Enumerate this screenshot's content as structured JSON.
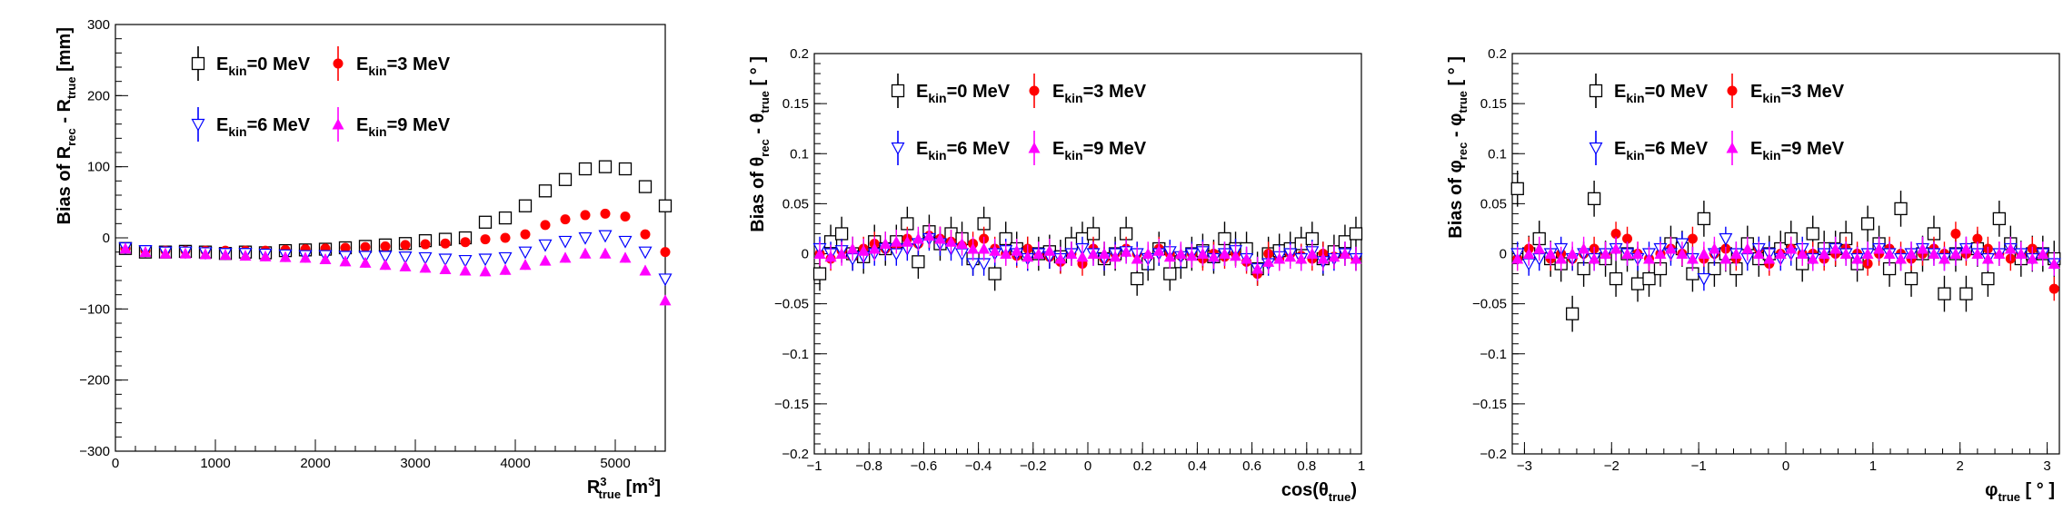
{
  "series_styles": [
    {
      "key": "e0",
      "marker": "open-square",
      "color": "#000000"
    },
    {
      "key": "e3",
      "marker": "filled-circle",
      "color": "#ff0000"
    },
    {
      "key": "e6",
      "marker": "open-triangle-down",
      "color": "#0000ff"
    },
    {
      "key": "e9",
      "marker": "filled-triangle-up",
      "color": "#ff00ff"
    }
  ],
  "chart_data": [
    {
      "type": "scatter",
      "xlabel": {
        "main": "R",
        "sup": "3",
        "sub": "true",
        "suffix": " [m",
        "suffix_sup": "3",
        "tail": "]"
      },
      "ylabel": {
        "prefix": "Bias of R",
        "sub1": "rec",
        "mid": " - R",
        "sub2": "true",
        "suffix": " [mm]"
      },
      "xlim": [
        0,
        5500
      ],
      "ylim": [
        -300,
        300
      ],
      "xticks": [
        0,
        1000,
        2000,
        3000,
        4000,
        5000
      ],
      "xtick_labels": [
        "0",
        "1000",
        "2000",
        "3000",
        "4000",
        "5000"
      ],
      "yticks": [
        -300,
        -200,
        -100,
        0,
        100,
        200,
        300
      ],
      "ytick_labels": [
        "−300",
        "−200",
        "−100",
        "0",
        "100",
        "200",
        "300"
      ],
      "legend": [
        {
          "series": "e0",
          "main": "E",
          "sub": "kin",
          "rest": "=0 MeV"
        },
        {
          "series": "e3",
          "main": "E",
          "sub": "kin",
          "rest": "=3 MeV"
        },
        {
          "series": "e6",
          "main": "E",
          "sub": "kin",
          "rest": "=6 MeV"
        },
        {
          "series": "e9",
          "main": "E",
          "sub": "kin",
          "rest": "=9 MeV"
        }
      ],
      "x": [
        100,
        300,
        500,
        700,
        900,
        1100,
        1300,
        1500,
        1700,
        1900,
        2100,
        2300,
        2500,
        2700,
        2900,
        3100,
        3300,
        3500,
        3700,
        3900,
        4100,
        4300,
        4500,
        4700,
        4900,
        5100,
        5300,
        5500
      ],
      "series": [
        {
          "key": "e0",
          "values": [
            -15,
            -20,
            -20,
            -19,
            -20,
            -22,
            -20,
            -21,
            -18,
            -17,
            -16,
            -14,
            -12,
            -10,
            -8,
            -4,
            -2,
            0,
            22,
            28,
            45,
            66,
            82,
            97,
            100,
            97,
            72,
            45
          ],
          "err": 0
        },
        {
          "key": "e3",
          "values": [
            -15,
            -18,
            -18,
            -18,
            -18,
            -18,
            -18,
            -18,
            -17,
            -16,
            -15,
            -14,
            -13,
            -12,
            -10,
            -9,
            -8,
            -6,
            -2,
            0,
            5,
            18,
            26,
            32,
            34,
            30,
            5,
            -20
          ],
          "err": 5
        },
        {
          "key": "e6",
          "values": [
            -14,
            -18,
            -20,
            -20,
            -21,
            -22,
            -22,
            -23,
            -24,
            -25,
            -25,
            -26,
            -26,
            -26,
            -27,
            -28,
            -30,
            -32,
            -30,
            -28,
            -20,
            -10,
            -5,
            0,
            3,
            -5,
            -20,
            -58
          ],
          "err": 7
        },
        {
          "key": "e9",
          "values": [
            -15,
            -20,
            -22,
            -22,
            -23,
            -24,
            -25,
            -26,
            -27,
            -28,
            -30,
            -33,
            -35,
            -38,
            -40,
            -42,
            -44,
            -46,
            -47,
            -45,
            -38,
            -32,
            -28,
            -22,
            -22,
            -28,
            -46,
            -88
          ],
          "err": 7
        }
      ]
    },
    {
      "type": "scatter",
      "xlabel": {
        "prefix": "cos(θ",
        "sub": "true",
        "suffix": ")"
      },
      "ylabel": {
        "prefix": "Bias of θ",
        "sub1": "rec",
        "mid": " - θ",
        "sub2": "true",
        "suffix": " [ ° ]"
      },
      "xlim": [
        -1,
        1
      ],
      "ylim": [
        -0.2,
        0.2
      ],
      "xticks": [
        -1,
        -0.8,
        -0.6,
        -0.4,
        -0.2,
        0,
        0.2,
        0.4,
        0.6,
        0.8,
        1
      ],
      "xtick_labels": [
        "−1",
        "−0.8",
        "−0.6",
        "−0.4",
        "−0.2",
        "0",
        "0.2",
        "0.4",
        "0.6",
        "0.8",
        "1"
      ],
      "yticks": [
        -0.2,
        -0.15,
        -0.1,
        -0.05,
        0,
        0.05,
        0.1,
        0.15,
        0.2
      ],
      "ytick_labels": [
        "−0.2",
        "−0.15",
        "−0.1",
        "−0.05",
        "0",
        "0.05",
        "0.1",
        "0.15",
        "0.2"
      ],
      "legend": [
        {
          "series": "e0",
          "main": "E",
          "sub": "kin",
          "rest": "=0 MeV"
        },
        {
          "series": "e3",
          "main": "E",
          "sub": "kin",
          "rest": "=3 MeV"
        },
        {
          "series": "e6",
          "main": "E",
          "sub": "kin",
          "rest": "=6 MeV"
        },
        {
          "series": "e9",
          "main": "E",
          "sub": "kin",
          "rest": "=9 MeV"
        }
      ],
      "x": [
        -0.98,
        -0.94,
        -0.9,
        -0.86,
        -0.82,
        -0.78,
        -0.74,
        -0.7,
        -0.66,
        -0.62,
        -0.58,
        -0.54,
        -0.5,
        -0.46,
        -0.42,
        -0.38,
        -0.34,
        -0.3,
        -0.26,
        -0.22,
        -0.18,
        -0.14,
        -0.1,
        -0.06,
        -0.02,
        0.02,
        0.06,
        0.1,
        0.14,
        0.18,
        0.22,
        0.26,
        0.3,
        0.34,
        0.38,
        0.42,
        0.46,
        0.5,
        0.54,
        0.58,
        0.62,
        0.66,
        0.7,
        0.74,
        0.78,
        0.82,
        0.86,
        0.9,
        0.94,
        0.98
      ],
      "series": [
        {
          "key": "e0",
          "values": [
            -0.02,
            0.012,
            0.02,
            0.0,
            -0.003,
            0.012,
            0.005,
            0.012,
            0.03,
            -0.008,
            0.022,
            0.01,
            0.02,
            0.015,
            -0.005,
            0.03,
            -0.02,
            0.015,
            0.005,
            0.0,
            0.0,
            0.002,
            -0.003,
            0.01,
            0.015,
            0.02,
            -0.005,
            0.0,
            0.02,
            -0.025,
            -0.01,
            0.005,
            -0.02,
            -0.008,
            0.0,
            0.003,
            -0.003,
            0.015,
            0.005,
            0.005,
            -0.015,
            0.0,
            0.003,
            0.005,
            0.01,
            0.015,
            -0.005,
            0.002,
            0.012,
            0.02
          ],
          "err": 0.017
        },
        {
          "key": "e3",
          "values": [
            0.0,
            -0.005,
            0.003,
            -0.003,
            0.005,
            0.01,
            0.005,
            0.008,
            0.015,
            0.01,
            0.018,
            0.015,
            0.012,
            0.008,
            0.01,
            0.015,
            0.005,
            0.0,
            -0.002,
            0.005,
            0.0,
            -0.003,
            -0.008,
            0.0,
            -0.01,
            0.005,
            -0.005,
            0.0,
            0.005,
            0.0,
            -0.003,
            0.005,
            0.0,
            -0.002,
            0.0,
            -0.005,
            0.0,
            -0.003,
            0.0,
            -0.008,
            -0.02,
            0.0,
            -0.005,
            0.0,
            -0.002,
            -0.005,
            0.0,
            -0.003,
            0.0,
            -0.005
          ],
          "err": 0.012
        },
        {
          "key": "e6",
          "values": [
            0.005,
            0.0,
            0.003,
            -0.005,
            -0.003,
            0.0,
            0.005,
            0.0,
            0.005,
            0.01,
            0.015,
            0.01,
            0.005,
            0.0,
            -0.01,
            -0.01,
            0.0,
            0.003,
            0.0,
            -0.005,
            0.0,
            -0.003,
            -0.005,
            0.0,
            0.005,
            0.0,
            -0.005,
            0.0,
            0.002,
            0.0,
            -0.005,
            0.0,
            0.002,
            -0.003,
            0.0,
            0.002,
            -0.005,
            0.0,
            0.003,
            -0.005,
            -0.015,
            -0.01,
            -0.003,
            0.0,
            -0.005,
            0.002,
            -0.008,
            -0.005,
            0.0,
            -0.005
          ],
          "err": 0.012
        },
        {
          "key": "e9",
          "values": [
            0.0,
            -0.003,
            0.0,
            0.005,
            0.003,
            0.005,
            0.01,
            0.012,
            0.012,
            0.015,
            0.018,
            0.015,
            0.012,
            0.01,
            0.005,
            0.005,
            0.003,
            0.0,
            0.003,
            -0.003,
            0.0,
            0.003,
            -0.005,
            0.0,
            -0.003,
            0.0,
            0.0,
            -0.003,
            0.002,
            -0.005,
            0.0,
            0.003,
            -0.003,
            0.0,
            -0.002,
            0.0,
            -0.003,
            0.0,
            -0.002,
            -0.005,
            -0.015,
            -0.008,
            -0.005,
            -0.003,
            -0.005,
            0.0,
            -0.005,
            -0.003,
            0.0,
            -0.005
          ],
          "err": 0.012
        }
      ]
    },
    {
      "type": "scatter",
      "xlabel": {
        "prefix": "φ",
        "sub": "true",
        "suffix": " [ ° ]"
      },
      "ylabel": {
        "prefix": "Bias of φ",
        "sub1": "rec",
        "mid": " - φ",
        "sub2": "true",
        "suffix": " [ ° ]"
      },
      "xlim": [
        -3.14,
        3.14
      ],
      "ylim": [
        -0.2,
        0.2
      ],
      "xticks": [
        -3,
        -2,
        -1,
        0,
        1,
        2,
        3
      ],
      "xtick_labels": [
        "−3",
        "−2",
        "−1",
        "0",
        "1",
        "2",
        "3"
      ],
      "yticks": [
        -0.2,
        -0.15,
        -0.1,
        -0.05,
        0,
        0.05,
        0.1,
        0.15,
        0.2
      ],
      "ytick_labels": [
        "−0.2",
        "−0.15",
        "−0.1",
        "−0.05",
        "0",
        "0.05",
        "0.1",
        "0.15",
        "0.2"
      ],
      "legend": [
        {
          "series": "e0",
          "main": "E",
          "sub": "kin",
          "rest": "=0 MeV"
        },
        {
          "series": "e3",
          "main": "E",
          "sub": "kin",
          "rest": "=3 MeV"
        },
        {
          "series": "e6",
          "main": "E",
          "sub": "kin",
          "rest": "=6 MeV"
        },
        {
          "series": "e9",
          "main": "E",
          "sub": "kin",
          "rest": "=9 MeV"
        }
      ],
      "x": [
        -3.08,
        -2.95,
        -2.83,
        -2.7,
        -2.58,
        -2.45,
        -2.32,
        -2.2,
        -2.07,
        -1.95,
        -1.82,
        -1.7,
        -1.57,
        -1.44,
        -1.32,
        -1.19,
        -1.07,
        -0.94,
        -0.82,
        -0.69,
        -0.57,
        -0.44,
        -0.31,
        -0.19,
        -0.06,
        0.06,
        0.19,
        0.31,
        0.44,
        0.57,
        0.69,
        0.82,
        0.94,
        1.07,
        1.19,
        1.32,
        1.44,
        1.57,
        1.7,
        1.82,
        1.95,
        2.07,
        2.2,
        2.32,
        2.45,
        2.58,
        2.7,
        2.83,
        2.95,
        3.08
      ],
      "series": [
        {
          "key": "e0",
          "values": [
            0.065,
            0.0,
            0.015,
            -0.005,
            -0.01,
            -0.06,
            -0.015,
            0.055,
            -0.005,
            -0.025,
            0.0,
            -0.03,
            -0.025,
            -0.015,
            0.01,
            0.005,
            -0.02,
            0.035,
            -0.015,
            0.0,
            -0.015,
            0.01,
            -0.005,
            0.0,
            0.005,
            0.015,
            -0.01,
            0.02,
            0.005,
            0.005,
            0.015,
            -0.01,
            0.03,
            0.01,
            -0.015,
            0.045,
            -0.025,
            0.0,
            0.02,
            -0.04,
            0.0,
            -0.04,
            0.005,
            -0.025,
            0.035,
            0.01,
            -0.005,
            0.0,
            0.0,
            -0.005
          ],
          "err": 0.018
        },
        {
          "key": "e3",
          "values": [
            -0.005,
            0.005,
            0.0,
            -0.005,
            0.0,
            -0.005,
            0.0,
            0.005,
            0.0,
            0.02,
            0.015,
            0.0,
            -0.005,
            0.0,
            0.005,
            0.0,
            0.015,
            -0.005,
            0.0,
            0.005,
            -0.005,
            0.0,
            0.005,
            -0.01,
            0.0,
            0.005,
            0.0,
            0.0,
            -0.005,
            0.0,
            0.005,
            0.0,
            -0.01,
            0.0,
            0.005,
            0.0,
            -0.005,
            0.0,
            0.005,
            0.0,
            0.02,
            0.0,
            0.015,
            0.005,
            0.0,
            -0.005,
            0.0,
            0.005,
            0.0,
            -0.035
          ],
          "err": 0.012
        },
        {
          "key": "e6",
          "values": [
            0.0,
            -0.01,
            -0.005,
            0.0,
            0.005,
            -0.005,
            0.0,
            -0.005,
            0.0,
            0.005,
            0.0,
            -0.005,
            0.0,
            0.005,
            0.0,
            0.01,
            -0.005,
            -0.025,
            0.0,
            0.015,
            0.0,
            -0.005,
            0.005,
            0.0,
            -0.005,
            0.0,
            0.005,
            -0.005,
            0.0,
            0.005,
            0.0,
            -0.005,
            0.0,
            0.005,
            0.0,
            -0.005,
            0.0,
            0.005,
            0.0,
            -0.005,
            0.0,
            0.005,
            0.0,
            -0.005,
            0.0,
            0.005,
            0.0,
            -0.005,
            0.0,
            -0.01
          ],
          "err": 0.012
        },
        {
          "key": "e9",
          "values": [
            -0.005,
            0.0,
            0.005,
            0.0,
            -0.005,
            0.0,
            0.005,
            -0.005,
            0.0,
            0.005,
            0.0,
            0.0,
            -0.005,
            0.0,
            0.005,
            0.0,
            -0.005,
            0.0,
            0.005,
            -0.005,
            0.0,
            0.005,
            0.0,
            -0.005,
            0.0,
            0.005,
            0.0,
            -0.005,
            0.0,
            0.005,
            0.0,
            -0.005,
            0.0,
            0.005,
            0.0,
            -0.005,
            0.0,
            0.005,
            0.0,
            -0.005,
            0.0,
            0.005,
            0.0,
            -0.005,
            0.0,
            0.005,
            0.0,
            -0.005,
            0.0,
            -0.01
          ],
          "err": 0.012
        }
      ]
    }
  ]
}
